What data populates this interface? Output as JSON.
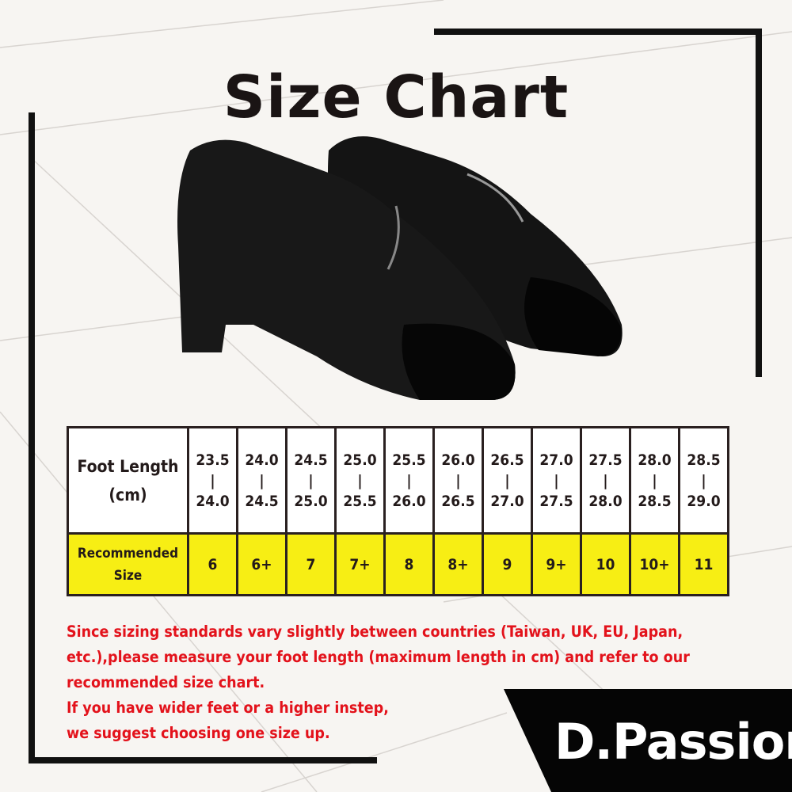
{
  "title": "Size Chart",
  "table": {
    "row_header_1": [
      "Foot Length",
      "(cm)"
    ],
    "row_header_2": [
      "Recommended",
      "Size"
    ],
    "foot_length": [
      [
        "23.5",
        "24.0"
      ],
      [
        "24.0",
        "24.5"
      ],
      [
        "24.5",
        "25.0"
      ],
      [
        "25.0",
        "25.5"
      ],
      [
        "25.5",
        "26.0"
      ],
      [
        "26.0",
        "26.5"
      ],
      [
        "26.5",
        "27.0"
      ],
      [
        "27.0",
        "27.5"
      ],
      [
        "27.5",
        "28.0"
      ],
      [
        "28.0",
        "28.5"
      ],
      [
        "28.5",
        "29.0"
      ]
    ],
    "separator": "|",
    "sizes": [
      "6",
      "6+",
      "7",
      "7+",
      "8",
      "8+",
      "9",
      "9+",
      "10",
      "10+",
      "11"
    ]
  },
  "note": [
    "Since sizing standards vary slightly between countries (Taiwan, UK, EU, Japan, etc.),please measure your foot length (maximum length in cm) and refer to our recommended size chart.",
    "If you have wider feet or a higher instep,",
    "we suggest choosing one size up."
  ],
  "logo": "D.Passion",
  "colors": {
    "accent_yellow": "#f7ee14",
    "note_red": "#e3121b",
    "frame": "#111111"
  }
}
